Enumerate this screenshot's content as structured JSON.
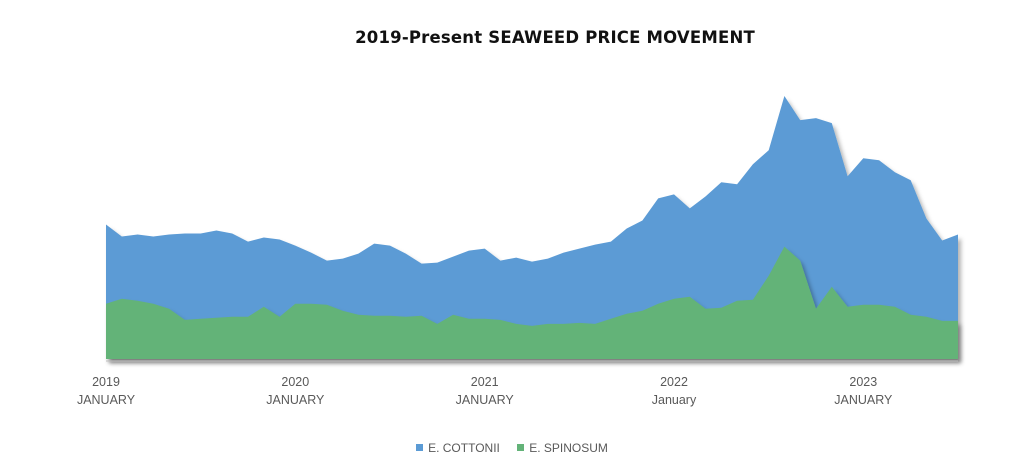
{
  "chart_data": {
    "type": "area",
    "title": "2019-Present SEAWEED PRICE MOVEMENT",
    "x_tick_labels": [
      {
        "year": "2019",
        "month": "JANUARY"
      },
      {
        "year": "2020",
        "month": "JANUARY"
      },
      {
        "year": "2021",
        "month": "JANUARY"
      },
      {
        "year": "2022",
        "month": "January"
      },
      {
        "year": "2023",
        "month": "JANUARY"
      }
    ],
    "x_range": [
      "2019-01",
      "2023-07"
    ],
    "y_axis_shown": false,
    "legend_position": "bottom",
    "series": [
      {
        "name": "E. COTTONII",
        "color": "#5b9bd5",
        "values": [
          1.34,
          1.22,
          1.24,
          1.22,
          1.24,
          1.25,
          1.25,
          1.28,
          1.25,
          1.17,
          1.21,
          1.19,
          1.13,
          1.06,
          0.98,
          1.0,
          1.05,
          1.15,
          1.13,
          1.05,
          0.95,
          0.96,
          1.02,
          1.08,
          1.1,
          0.98,
          1.01,
          0.97,
          1.0,
          1.06,
          1.1,
          1.14,
          1.17,
          1.3,
          1.38,
          1.6,
          1.64,
          1.5,
          1.62,
          1.76,
          1.74,
          1.94,
          2.08,
          2.62,
          2.38,
          2.4,
          2.35,
          1.82,
          2.0,
          1.98,
          1.86,
          1.78,
          1.4,
          1.18,
          1.24
        ]
      },
      {
        "name": "E. SPINOSUM",
        "color": "#63b378",
        "values": [
          0.55,
          0.6,
          0.58,
          0.55,
          0.5,
          0.39,
          0.4,
          0.41,
          0.42,
          0.42,
          0.52,
          0.42,
          0.55,
          0.55,
          0.54,
          0.48,
          0.44,
          0.43,
          0.43,
          0.42,
          0.43,
          0.35,
          0.44,
          0.4,
          0.4,
          0.39,
          0.35,
          0.33,
          0.35,
          0.35,
          0.36,
          0.35,
          0.4,
          0.45,
          0.48,
          0.55,
          0.6,
          0.62,
          0.5,
          0.51,
          0.58,
          0.59,
          0.83,
          1.12,
          0.98,
          0.5,
          0.72,
          0.52,
          0.54,
          0.54,
          0.52,
          0.44,
          0.42,
          0.38,
          0.38
        ]
      }
    ]
  }
}
